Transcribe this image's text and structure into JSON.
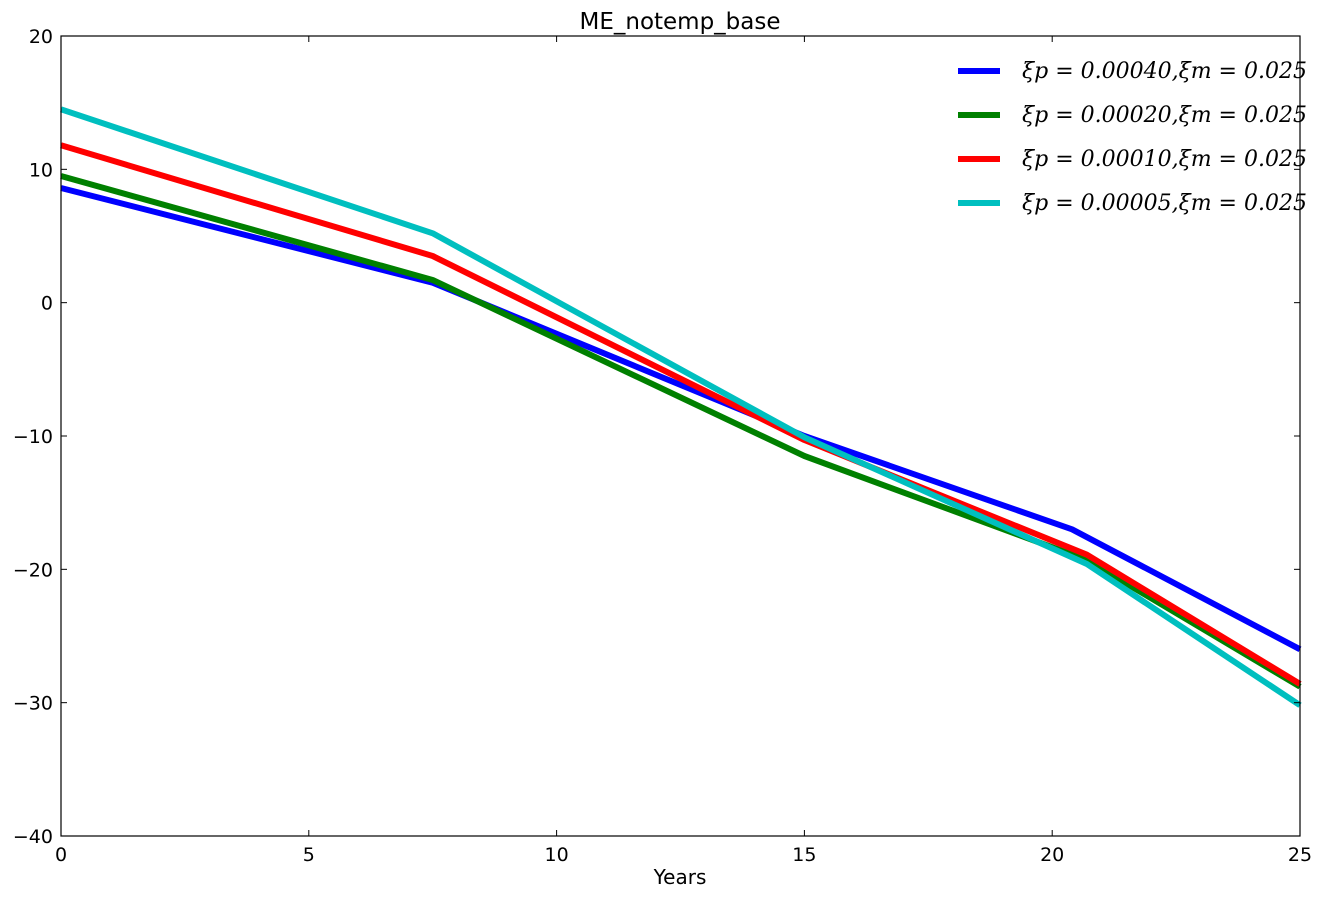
{
  "chart_data": {
    "type": "line",
    "title": "ME_notemp_base",
    "xlabel": "Years",
    "ylabel": "",
    "xlim": [
      0,
      25
    ],
    "ylim": [
      -40,
      20
    ],
    "xticks": [
      0,
      5,
      10,
      15,
      20,
      25
    ],
    "yticks": [
      -40,
      -30,
      -20,
      -10,
      0,
      10,
      20
    ],
    "xtick_labels": [
      "0",
      "5",
      "10",
      "15",
      "20",
      "25"
    ],
    "ytick_labels": [
      "−40",
      "−30",
      "−20",
      "−10",
      "0",
      "10",
      "20"
    ],
    "grid": false,
    "legend_position": "top-right",
    "series": [
      {
        "name": "ξp = 0.00040,ξm = 0.025",
        "color": "#0000ff",
        "x": [
          0,
          7.5,
          15,
          20.4,
          25
        ],
        "y": [
          8.6,
          1.5,
          -10.0,
          -17.0,
          -26.0
        ]
      },
      {
        "name": "ξp = 0.00020,ξm = 0.025",
        "color": "#008000",
        "x": [
          0,
          7.5,
          15,
          20.7,
          25
        ],
        "y": [
          9.5,
          1.7,
          -11.5,
          -19.3,
          -28.8
        ]
      },
      {
        "name": "ξp = 0.00010,ξm = 0.025",
        "color": "#ff0000",
        "x": [
          0,
          7.5,
          15,
          20.7,
          25
        ],
        "y": [
          11.8,
          3.5,
          -10.3,
          -18.9,
          -28.6
        ]
      },
      {
        "name": "ξp = 0.00005,ξm = 0.025",
        "color": "#00bfbf",
        "x": [
          0,
          7.5,
          15,
          20.7,
          25
        ],
        "y": [
          14.5,
          5.2,
          -10.1,
          -19.6,
          -30.2
        ]
      }
    ]
  }
}
